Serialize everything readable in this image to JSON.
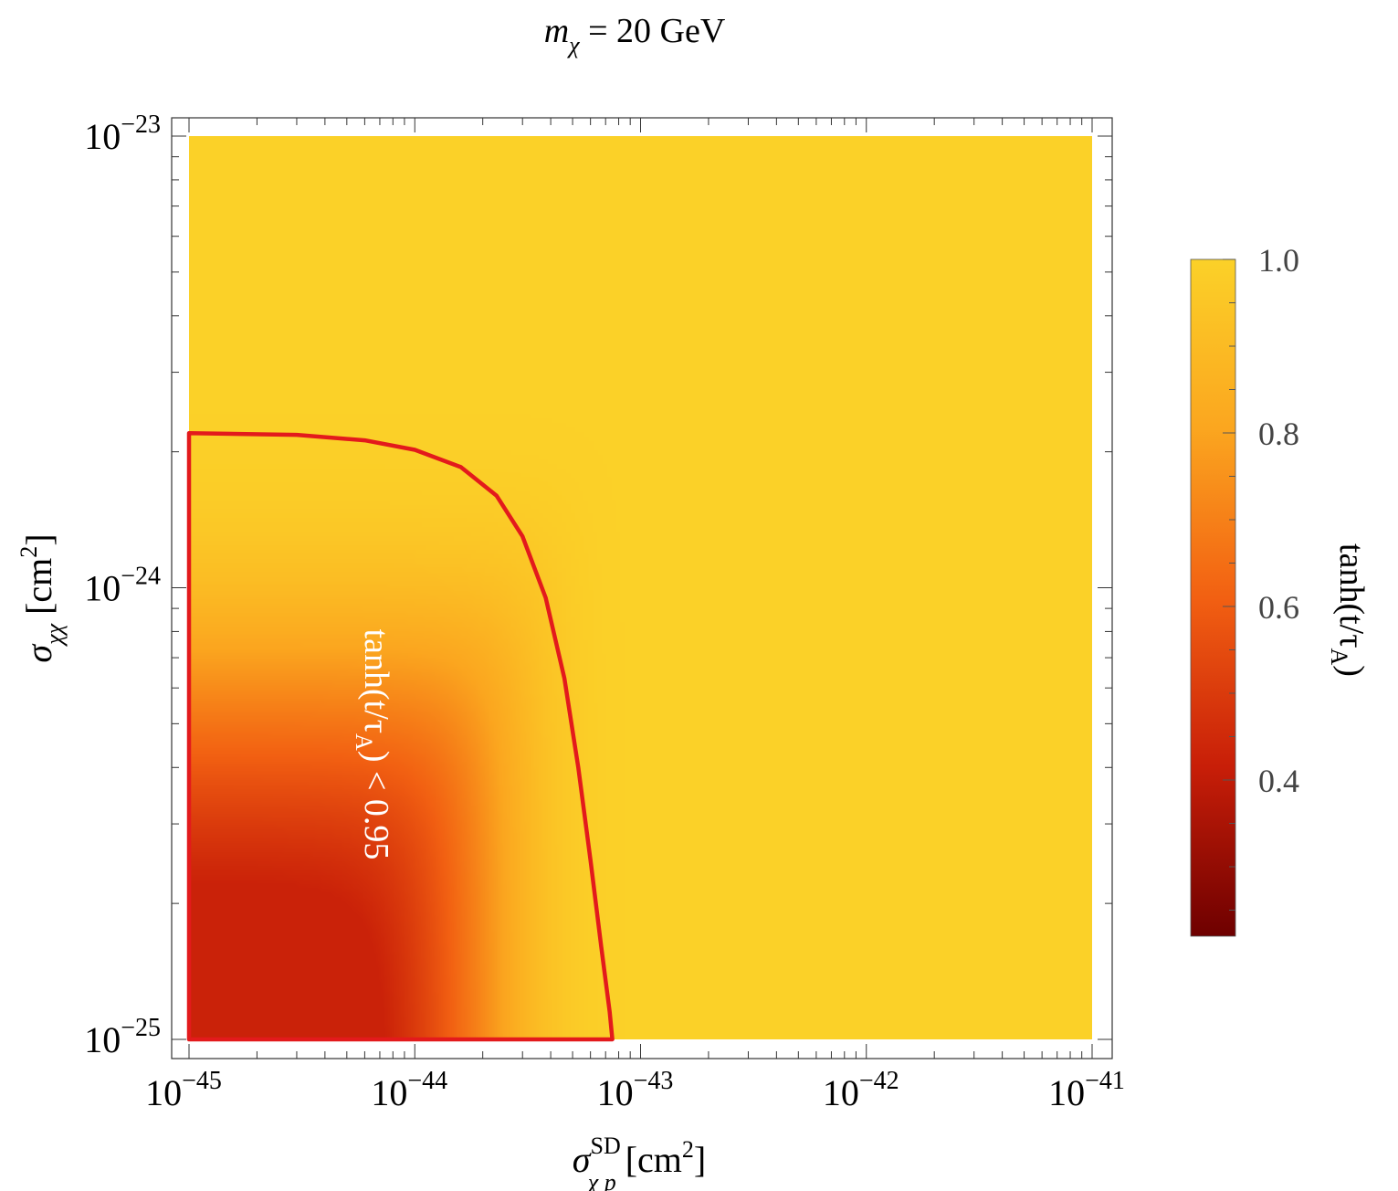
{
  "title": {
    "var": "m",
    "sub": "χ",
    "rest": " = 20 GeV"
  },
  "chart_data": {
    "type": "heatmap",
    "x_scale": "log",
    "y_scale": "log",
    "xlim": [
      1e-45,
      1e-41
    ],
    "ylim": [
      1e-25,
      1e-23
    ],
    "xlabel": {
      "sym": "σ",
      "sup": "SD",
      "sub": "χ p",
      "unit": " [cm",
      "unit_sup": "2",
      "unit_end": "]"
    },
    "ylabel": {
      "sym": "σ",
      "sub": "χχ",
      "unit": " [cm",
      "unit_sup": "2",
      "unit_end": "]"
    },
    "x_ticks": [
      {
        "value": 1e-45,
        "base": "10",
        "exp": "−45"
      },
      {
        "value": 1e-44,
        "base": "10",
        "exp": "−44"
      },
      {
        "value": 1e-43,
        "base": "10",
        "exp": "−43"
      },
      {
        "value": 1e-42,
        "base": "10",
        "exp": "−42"
      },
      {
        "value": 1e-41,
        "base": "10",
        "exp": "−41"
      }
    ],
    "y_ticks": [
      {
        "value": 1e-25,
        "base": "10",
        "exp": "−25"
      },
      {
        "value": 1e-24,
        "base": "10",
        "exp": "−24"
      },
      {
        "value": 1e-23,
        "base": "10",
        "exp": "−23"
      }
    ],
    "colorbar": {
      "label": "tanh(t/τ",
      "label_sub": "A",
      "label_end": ")",
      "range": [
        0.22,
        1.0
      ],
      "ticks": [
        "0.4",
        "0.6",
        "0.8",
        "1.0"
      ],
      "tick_values": [
        0.4,
        0.6,
        0.8,
        1.0
      ],
      "colors": [
        "#6e0000",
        "#c81e08",
        "#f26012",
        "#fba61f",
        "#fbd128"
      ]
    },
    "contour": {
      "level": 0.95,
      "color": "#e31a1c",
      "label": "tanh(t/τ",
      "label_sub": "A",
      "label_end": ") < 0.95",
      "points": [
        [
          1e-45,
          1e-25
        ],
        [
          1e-45,
          2.2e-24
        ],
        [
          3e-45,
          2.18e-24
        ],
        [
          6e-45,
          2.12e-24
        ],
        [
          1e-44,
          2.02e-24
        ],
        [
          1.6e-44,
          1.85e-24
        ],
        [
          2.3e-44,
          1.6e-24
        ],
        [
          3e-44,
          1.3e-24
        ],
        [
          3.8e-44,
          9.5e-25
        ],
        [
          4.6e-44,
          6.3e-25
        ],
        [
          5.3e-44,
          4e-25
        ],
        [
          6e-44,
          2.5e-25
        ],
        [
          6.7e-44,
          1.6e-25
        ],
        [
          7.3e-44,
          1.15e-25
        ],
        [
          7.5e-44,
          1e-25
        ]
      ]
    },
    "field_model": {
      "x_scale": 7.5e-44,
      "y_scale": 2.2e-24,
      "min_value": 0.22,
      "floor": 0.1
    }
  }
}
